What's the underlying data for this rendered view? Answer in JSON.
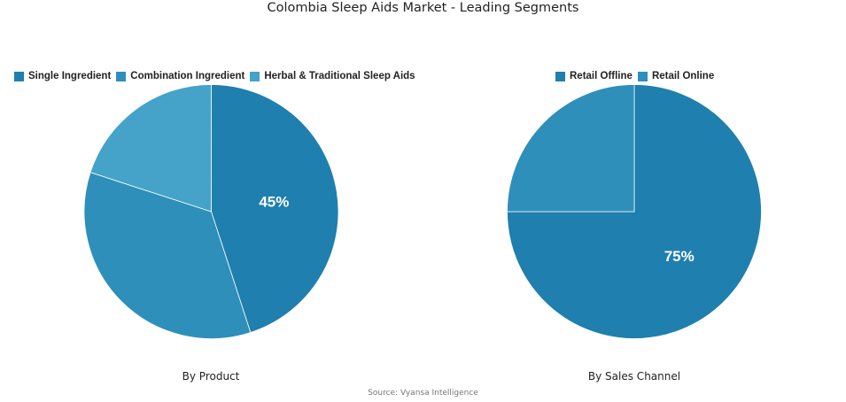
{
  "title": "Colombia Sleep Aids Market - Leading Segments",
  "source": "Source: Vyansa Intelligence",
  "chart_data": [
    {
      "type": "pie",
      "subtitle": "By Product",
      "legend_position": "top",
      "slices": [
        {
          "label": "Single Ingredient",
          "value": 45,
          "color": "#1f7fae",
          "data_label": "45%"
        },
        {
          "label": "Combination Ingredient",
          "value": 35,
          "color": "#2e8fbb",
          "data_label": ""
        },
        {
          "label": "Herbal & Traditional Sleep Aids",
          "value": 20,
          "color": "#45a2c8",
          "data_label": ""
        }
      ]
    },
    {
      "type": "pie",
      "subtitle": "By Sales Channel",
      "legend_position": "top",
      "slices": [
        {
          "label": "Retail Offline",
          "value": 75,
          "color": "#1f7fae",
          "data_label": "75%"
        },
        {
          "label": "Retail Online",
          "value": 25,
          "color": "#2e8fbb",
          "data_label": ""
        }
      ]
    }
  ]
}
